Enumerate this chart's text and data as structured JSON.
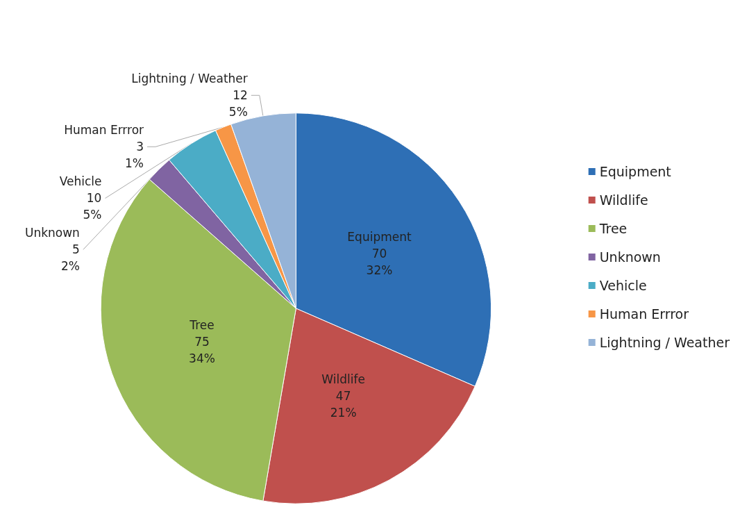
{
  "chart_data": {
    "type": "pie",
    "categories": [
      "Equipment",
      "Wildlife",
      "Tree",
      "Unknown",
      "Vehicle",
      "Human Errror",
      "Lightning / Weather"
    ],
    "values": [
      70,
      47,
      75,
      5,
      10,
      3,
      12
    ],
    "colors": [
      "#2e6fb5",
      "#c0504d",
      "#9bbb59",
      "#8064a2",
      "#4bacc6",
      "#f79646",
      "#95b3d7"
    ],
    "value_labels": [
      "70\n32%",
      "47\n21%",
      "75\n34%",
      "5\n2%",
      "10\n5%",
      "3\n1%",
      "12\n5%"
    ],
    "legend": "right"
  }
}
